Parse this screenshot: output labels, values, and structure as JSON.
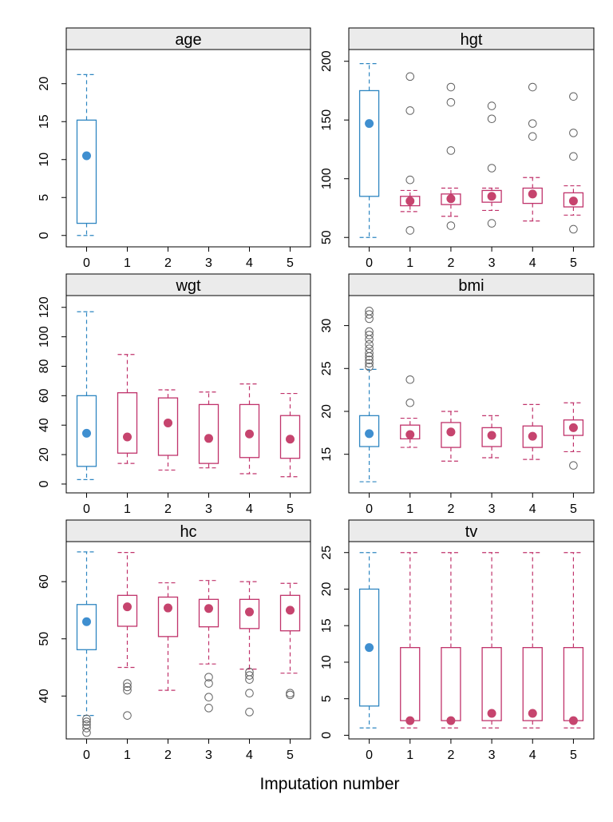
{
  "figure": {
    "xlabel": "Imputation number",
    "colors": {
      "observed": "#2E86C1",
      "observed_median": "#3F8FD0",
      "imputed": "#C0336B",
      "imputed_median": "#C6446E",
      "outlier": "#606060",
      "strip": "#EBEBEB"
    }
  },
  "chart_data": [
    {
      "type": "box",
      "title": "age",
      "categories": [
        "0",
        "1",
        "2",
        "3",
        "4",
        "5"
      ],
      "ylim": [
        -1.5,
        24.5
      ],
      "yticks": [
        0,
        5,
        10,
        15,
        20
      ],
      "boxes": [
        {
          "x": "0",
          "group": "observed",
          "whisker_low": 0.0,
          "q1": 1.6,
          "median": 10.5,
          "q3": 15.2,
          "whisker_high": 21.2,
          "outliers": []
        }
      ]
    },
    {
      "type": "box",
      "title": "hgt",
      "categories": [
        "0",
        "1",
        "2",
        "3",
        "4",
        "5"
      ],
      "ylim": [
        42,
        210
      ],
      "yticks": [
        50,
        100,
        150,
        200
      ],
      "boxes": [
        {
          "x": "0",
          "group": "observed",
          "whisker_low": 50,
          "q1": 85,
          "median": 147,
          "q3": 175,
          "whisker_high": 198,
          "outliers": []
        },
        {
          "x": "1",
          "group": "imputed",
          "whisker_low": 72,
          "q1": 77,
          "median": 81,
          "q3": 85,
          "whisker_high": 90,
          "outliers": [
            56,
            99,
            158,
            187
          ]
        },
        {
          "x": "2",
          "group": "imputed",
          "whisker_low": 68,
          "q1": 78,
          "median": 83,
          "q3": 87,
          "whisker_high": 92,
          "outliers": [
            60,
            124,
            165,
            178
          ]
        },
        {
          "x": "3",
          "group": "imputed",
          "whisker_low": 73,
          "q1": 80,
          "median": 85,
          "q3": 90,
          "whisker_high": 92,
          "outliers": [
            62,
            109,
            151,
            162
          ]
        },
        {
          "x": "4",
          "group": "imputed",
          "whisker_low": 64,
          "q1": 79,
          "median": 87,
          "q3": 92,
          "whisker_high": 101,
          "outliers": [
            136,
            147,
            178
          ]
        },
        {
          "x": "5",
          "group": "imputed",
          "whisker_low": 69,
          "q1": 76,
          "median": 81,
          "q3": 88,
          "whisker_high": 94,
          "outliers": [
            57,
            119,
            139,
            170
          ]
        }
      ]
    },
    {
      "type": "box",
      "title": "wgt",
      "categories": [
        "0",
        "1",
        "2",
        "3",
        "4",
        "5"
      ],
      "ylim": [
        -6,
        128
      ],
      "yticks": [
        0,
        20,
        40,
        60,
        80,
        100,
        120
      ],
      "boxes": [
        {
          "x": "0",
          "group": "observed",
          "whisker_low": 3,
          "q1": 12,
          "median": 34.5,
          "q3": 60,
          "whisker_high": 117,
          "outliers": []
        },
        {
          "x": "1",
          "group": "imputed",
          "whisker_low": 14,
          "q1": 21,
          "median": 32,
          "q3": 62,
          "whisker_high": 88,
          "outliers": []
        },
        {
          "x": "2",
          "group": "imputed",
          "whisker_low": 9.5,
          "q1": 19.5,
          "median": 41.5,
          "q3": 58.5,
          "whisker_high": 64,
          "outliers": []
        },
        {
          "x": "3",
          "group": "imputed",
          "whisker_low": 11,
          "q1": 14,
          "median": 31,
          "q3": 54,
          "whisker_high": 62.5,
          "outliers": []
        },
        {
          "x": "4",
          "group": "imputed",
          "whisker_low": 7,
          "q1": 18,
          "median": 34,
          "q3": 54,
          "whisker_high": 68,
          "outliers": []
        },
        {
          "x": "5",
          "group": "imputed",
          "whisker_low": 5,
          "q1": 17.5,
          "median": 30.5,
          "q3": 46.5,
          "whisker_high": 61.5,
          "outliers": []
        }
      ]
    },
    {
      "type": "box",
      "title": "bmi",
      "categories": [
        "0",
        "1",
        "2",
        "3",
        "4",
        "5"
      ],
      "ylim": [
        10.5,
        33.5
      ],
      "yticks": [
        15,
        20,
        25,
        30
      ],
      "boxes": [
        {
          "x": "0",
          "group": "observed",
          "whisker_low": 11.8,
          "q1": 15.9,
          "median": 17.4,
          "q3": 19.5,
          "whisker_high": 24.9,
          "outliers": [
            25.2,
            25.6,
            26.0,
            26.4,
            26.8,
            27.3,
            27.8,
            28.4,
            28.9,
            29.3,
            30.8,
            31.3,
            31.7
          ]
        },
        {
          "x": "1",
          "group": "imputed",
          "whisker_low": 15.8,
          "q1": 16.8,
          "median": 17.3,
          "q3": 18.4,
          "whisker_high": 19.2,
          "outliers": [
            21.0,
            23.7
          ]
        },
        {
          "x": "2",
          "group": "imputed",
          "whisker_low": 14.2,
          "q1": 15.8,
          "median": 17.6,
          "q3": 18.7,
          "whisker_high": 20.0,
          "outliers": []
        },
        {
          "x": "3",
          "group": "imputed",
          "whisker_low": 14.6,
          "q1": 15.9,
          "median": 17.2,
          "q3": 18.1,
          "whisker_high": 19.5,
          "outliers": []
        },
        {
          "x": "4",
          "group": "imputed",
          "whisker_low": 14.4,
          "q1": 15.8,
          "median": 17.1,
          "q3": 18.3,
          "whisker_high": 20.8,
          "outliers": []
        },
        {
          "x": "5",
          "group": "imputed",
          "whisker_low": 15.3,
          "q1": 17.2,
          "median": 18.1,
          "q3": 19.0,
          "whisker_high": 21.0,
          "outliers": [
            13.7
          ]
        }
      ]
    },
    {
      "type": "box",
      "title": "hc",
      "categories": [
        "0",
        "1",
        "2",
        "3",
        "4",
        "5"
      ],
      "ylim": [
        32.5,
        67
      ],
      "yticks": [
        40,
        50,
        60
      ],
      "boxes": [
        {
          "x": "0",
          "group": "observed",
          "whisker_low": 36.6,
          "q1": 48.1,
          "median": 53.0,
          "q3": 56.0,
          "whisker_high": 65.2,
          "outliers": [
            33.6,
            34.4,
            35.0,
            35.5,
            36.0
          ]
        },
        {
          "x": "1",
          "group": "imputed",
          "whisker_low": 45.0,
          "q1": 52.2,
          "median": 55.6,
          "q3": 57.6,
          "whisker_high": 65.1,
          "outliers": [
            36.6,
            41.0,
            41.6,
            42.2
          ]
        },
        {
          "x": "2",
          "group": "imputed",
          "whisker_low": 41.0,
          "q1": 50.4,
          "median": 55.4,
          "q3": 57.3,
          "whisker_high": 59.8,
          "outliers": []
        },
        {
          "x": "3",
          "group": "imputed",
          "whisker_low": 45.6,
          "q1": 52.1,
          "median": 55.3,
          "q3": 56.9,
          "whisker_high": 60.2,
          "outliers": [
            37.9,
            39.8,
            42.2,
            43.3
          ]
        },
        {
          "x": "4",
          "group": "imputed",
          "whisker_low": 44.7,
          "q1": 51.8,
          "median": 54.7,
          "q3": 56.9,
          "whisker_high": 60.0,
          "outliers": [
            37.2,
            40.5,
            42.9,
            43.6,
            44.2
          ]
        },
        {
          "x": "5",
          "group": "imputed",
          "whisker_low": 44.0,
          "q1": 51.4,
          "median": 55.0,
          "q3": 57.6,
          "whisker_high": 59.7,
          "outliers": [
            40.2,
            40.5
          ]
        }
      ]
    },
    {
      "type": "box",
      "title": "tv",
      "categories": [
        "0",
        "1",
        "2",
        "3",
        "4",
        "5"
      ],
      "ylim": [
        -0.5,
        26.5
      ],
      "yticks": [
        0,
        5,
        10,
        15,
        20,
        25
      ],
      "boxes": [
        {
          "x": "0",
          "group": "observed",
          "whisker_low": 1,
          "q1": 4,
          "median": 12,
          "q3": 20,
          "whisker_high": 25,
          "outliers": []
        },
        {
          "x": "1",
          "group": "imputed",
          "whisker_low": 1,
          "q1": 2,
          "median": 2,
          "q3": 12,
          "whisker_high": 25,
          "outliers": []
        },
        {
          "x": "2",
          "group": "imputed",
          "whisker_low": 1,
          "q1": 2,
          "median": 2,
          "q3": 12,
          "whisker_high": 25,
          "outliers": []
        },
        {
          "x": "3",
          "group": "imputed",
          "whisker_low": 1,
          "q1": 2,
          "median": 3,
          "q3": 12,
          "whisker_high": 25,
          "outliers": []
        },
        {
          "x": "4",
          "group": "imputed",
          "whisker_low": 1,
          "q1": 2,
          "median": 3,
          "q3": 12,
          "whisker_high": 25,
          "outliers": []
        },
        {
          "x": "5",
          "group": "imputed",
          "whisker_low": 1,
          "q1": 2,
          "median": 2,
          "q3": 12,
          "whisker_high": 25,
          "outliers": []
        }
      ]
    }
  ]
}
